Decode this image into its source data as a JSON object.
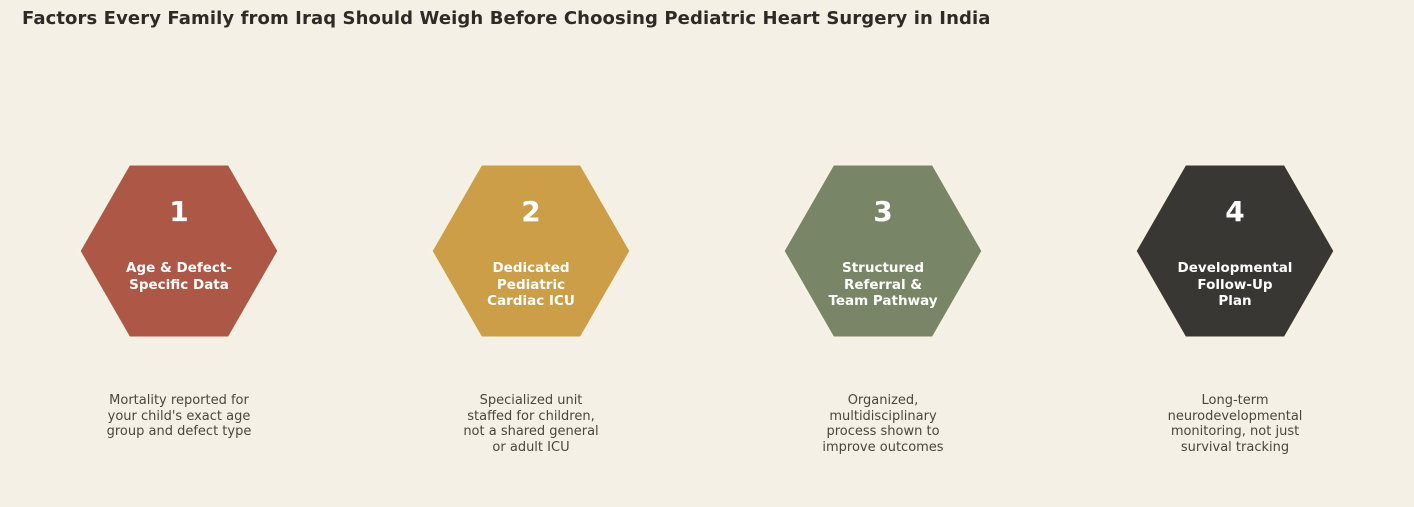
{
  "title": "Factors Every Family from Iraq Should Weigh Before Choosing Pediatric Heart Surgery in India",
  "colors": {
    "background": "#f5f0e6",
    "hex_stroke": "#f7f1e3"
  },
  "factors": [
    {
      "number": "1",
      "label_lines": [
        "Age & Defect-",
        "Specific Data"
      ],
      "description_lines": [
        "Mortality reported for",
        "your child's exact age",
        "group and defect type"
      ],
      "color": "#ad5747"
    },
    {
      "number": "2",
      "label_lines": [
        "Dedicated",
        "Pediatric",
        "Cardiac ICU"
      ],
      "description_lines": [
        "Specialized unit",
        "staffed for children,",
        "not a shared general",
        "or adult ICU"
      ],
      "color": "#cc9e48"
    },
    {
      "number": "3",
      "label_lines": [
        "Structured",
        "Referral &",
        "Team Pathway"
      ],
      "description_lines": [
        "Organized,",
        "multidisciplinary",
        "process shown to",
        "improve outcomes"
      ],
      "color": "#788567"
    },
    {
      "number": "4",
      "label_lines": [
        "Developmental",
        "Follow-Up",
        "Plan"
      ],
      "description_lines": [
        "Long-term",
        "neurodevelopmental",
        "monitoring, not just",
        "survival tracking"
      ],
      "color": "#383733"
    }
  ]
}
